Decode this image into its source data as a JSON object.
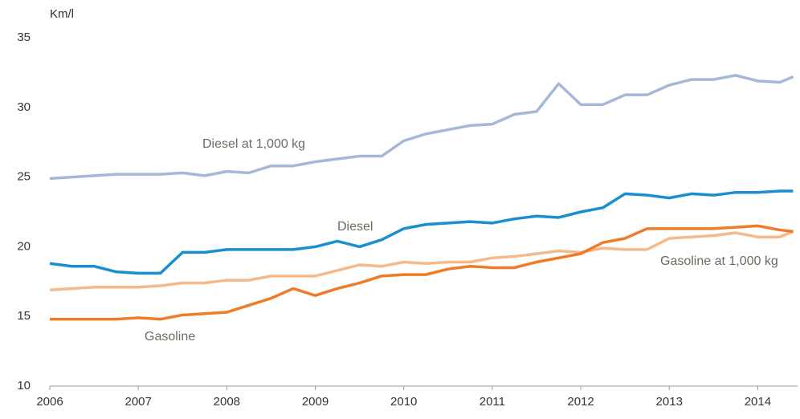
{
  "chart_data": {
    "type": "line",
    "y_unit_label": "Km/l",
    "x": [
      2006,
      2006.25,
      2006.5,
      2006.75,
      2007,
      2007.25,
      2007.5,
      2007.75,
      2008,
      2008.25,
      2008.5,
      2008.75,
      2009,
      2009.25,
      2009.5,
      2009.75,
      2010,
      2010.25,
      2010.5,
      2010.75,
      2011,
      2011.25,
      2011.5,
      2011.75,
      2012,
      2012.25,
      2012.5,
      2012.75,
      2013,
      2013.25,
      2013.5,
      2013.75,
      2014,
      2014.25,
      2014.4
    ],
    "series": [
      {
        "name": "Diesel at 1,000 kg",
        "color": "#a5b8d8",
        "values": [
          24.9,
          25.0,
          25.1,
          25.2,
          25.2,
          25.2,
          25.3,
          25.1,
          25.4,
          25.3,
          25.8,
          25.8,
          26.1,
          26.3,
          26.5,
          26.5,
          27.6,
          28.1,
          28.4,
          28.7,
          28.8,
          29.5,
          29.7,
          31.7,
          30.2,
          30.2,
          30.9,
          30.9,
          31.6,
          32.0,
          32.0,
          32.3,
          31.9,
          31.8,
          32.2
        ]
      },
      {
        "name": "Diesel",
        "color": "#1a8fd0",
        "values": [
          18.8,
          18.6,
          18.6,
          18.2,
          18.1,
          18.1,
          19.6,
          19.6,
          19.8,
          19.8,
          19.8,
          19.8,
          20.0,
          20.4,
          20.0,
          20.5,
          21.3,
          21.6,
          21.7,
          21.8,
          21.7,
          22.0,
          22.2,
          22.1,
          22.5,
          22.8,
          23.8,
          23.7,
          23.5,
          23.8,
          23.7,
          23.9,
          23.9,
          24.0,
          24.0
        ]
      },
      {
        "name": "Gasoline at 1,000 kg",
        "color": "#f6b98a",
        "values": [
          16.9,
          17.0,
          17.1,
          17.1,
          17.1,
          17.2,
          17.4,
          17.4,
          17.6,
          17.6,
          17.9,
          17.9,
          17.9,
          18.3,
          18.7,
          18.6,
          18.9,
          18.8,
          18.9,
          18.9,
          19.2,
          19.3,
          19.5,
          19.7,
          19.6,
          19.9,
          19.8,
          19.8,
          20.6,
          20.7,
          20.8,
          21.0,
          20.7,
          20.7,
          21.1
        ]
      },
      {
        "name": "Gasoline",
        "color": "#ef7a28",
        "values": [
          14.8,
          14.8,
          14.8,
          14.8,
          14.9,
          14.8,
          15.1,
          15.2,
          15.3,
          15.8,
          16.3,
          17.0,
          16.5,
          17.0,
          17.4,
          17.9,
          18.0,
          18.0,
          18.4,
          18.6,
          18.5,
          18.5,
          18.9,
          19.2,
          19.5,
          20.3,
          20.6,
          21.3,
          21.3,
          21.3,
          21.3,
          21.4,
          21.5,
          21.2,
          21.1
        ]
      }
    ],
    "xlim": [
      2006,
      2014.45
    ],
    "xticks": [
      2006,
      2007,
      2008,
      2009,
      2010,
      2011,
      2012,
      2013,
      2014
    ],
    "ylim": [
      10,
      35
    ],
    "yticks": [
      10,
      15,
      20,
      25,
      30,
      35
    ]
  }
}
